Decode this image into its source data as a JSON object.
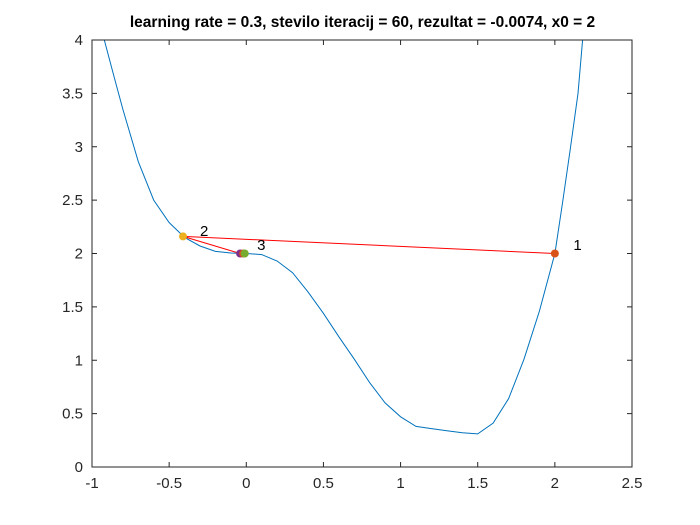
{
  "chart_data": {
    "type": "line",
    "title": "learning rate = 0.3, stevilo iteracij = 60, rezultat = -0.0074, x0 = 2",
    "xlabel": "",
    "ylabel": "",
    "xlim": [
      -1,
      2.5
    ],
    "ylim": [
      0,
      4
    ],
    "grid": false,
    "legend": "none",
    "x_ticks": [
      "-1",
      "-0.5",
      "0",
      "0.5",
      "1",
      "1.5",
      "2",
      "2.5"
    ],
    "y_ticks": [
      "0",
      "0.5",
      "1",
      "1.5",
      "2",
      "2.5",
      "3",
      "3.5",
      "4"
    ],
    "curve": {
      "x": [
        -0.92,
        -0.85,
        -0.8,
        -0.7,
        -0.6,
        -0.5,
        -0.4,
        -0.3,
        -0.2,
        -0.1,
        0.0,
        0.1,
        0.2,
        0.3,
        0.4,
        0.5,
        0.6,
        0.7,
        0.8,
        0.9,
        1.0,
        1.1,
        1.2,
        1.3,
        1.4,
        1.5,
        1.6,
        1.7,
        1.8,
        1.9,
        2.0,
        2.05,
        2.1,
        2.15,
        2.18
      ],
      "y": [
        4.0,
        3.62,
        3.35,
        2.86,
        2.5,
        2.29,
        2.15,
        2.07,
        2.02,
        2.005,
        2.0,
        1.99,
        1.93,
        1.82,
        1.64,
        1.44,
        1.22,
        1.01,
        0.79,
        0.6,
        0.47,
        0.38,
        0.36,
        0.34,
        0.32,
        0.31,
        0.41,
        0.64,
        1.01,
        1.46,
        2.0,
        2.48,
        2.98,
        3.5,
        4.0
      ],
      "color": "#0072BD"
    },
    "iterations": {
      "x": [
        2.0,
        -0.41,
        -0.04,
        -0.02,
        -0.01
      ],
      "y": [
        2.0,
        2.16,
        2.0,
        2.0,
        2.0
      ],
      "path_color": "#FF0000",
      "marker_colors": [
        "#D95319",
        "#EDB120",
        "#7E2F8E",
        "#D95319",
        "#77AC30"
      ]
    },
    "annotations": [
      {
        "text": "1",
        "x": 2.12,
        "y": 2.08
      },
      {
        "text": "2",
        "x": -0.3,
        "y": 2.21
      },
      {
        "text": "3",
        "x": 0.07,
        "y": 2.08
      }
    ]
  }
}
